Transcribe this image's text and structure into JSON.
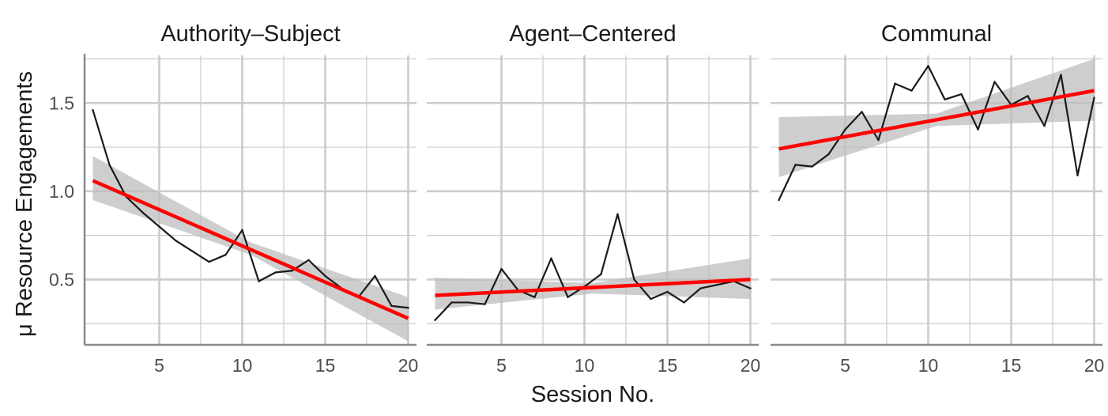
{
  "chart_data": {
    "type": "line",
    "xlabel": "Session No.",
    "ylabel": "μ Resource Engagements",
    "xlim": [
      0.5,
      20.5
    ],
    "ylim": [
      0.13,
      1.77
    ],
    "x_ticks": [
      5,
      10,
      15,
      20
    ],
    "x_tick_labels": [
      "5",
      "10",
      "15",
      "20"
    ],
    "y_ticks": [
      0.5,
      1.0,
      1.5
    ],
    "y_tick_labels": [
      "0.5",
      "1.0",
      "1.5"
    ],
    "grid": true,
    "facets": [
      {
        "title": "Authority–Subject",
        "x": [
          1,
          2,
          3,
          4,
          5,
          6,
          7,
          8,
          9,
          10,
          11,
          12,
          13,
          14,
          15,
          16,
          17,
          18,
          19,
          20
        ],
        "values": [
          1.46,
          1.15,
          0.97,
          0.88,
          0.8,
          0.72,
          0.66,
          0.6,
          0.64,
          0.78,
          0.49,
          0.54,
          0.55,
          0.61,
          0.52,
          0.45,
          0.4,
          0.52,
          0.35,
          0.34
        ],
        "trend": {
          "x0": 1,
          "y0": 1.06,
          "x1": 20,
          "y1": 0.28
        },
        "ci": [
          {
            "x": 1,
            "lo": 0.95,
            "hi": 1.2
          },
          {
            "x": 10.5,
            "lo": 0.64,
            "hi": 0.71
          },
          {
            "x": 20,
            "lo": 0.15,
            "hi": 0.4
          }
        ]
      },
      {
        "title": "Agent–Centered",
        "x": [
          1,
          2,
          3,
          4,
          5,
          6,
          7,
          8,
          9,
          10,
          11,
          12,
          13,
          14,
          15,
          16,
          17,
          18,
          19,
          20
        ],
        "values": [
          0.27,
          0.37,
          0.37,
          0.36,
          0.56,
          0.44,
          0.4,
          0.62,
          0.4,
          0.46,
          0.53,
          0.87,
          0.5,
          0.39,
          0.43,
          0.37,
          0.45,
          0.47,
          0.49,
          0.45
        ],
        "trend": {
          "x0": 1,
          "y0": 0.41,
          "x1": 20,
          "y1": 0.5
        },
        "ci": [
          {
            "x": 1,
            "lo": 0.33,
            "hi": 0.51
          },
          {
            "x": 10.5,
            "lo": 0.42,
            "hi": 0.48
          },
          {
            "x": 20,
            "lo": 0.39,
            "hi": 0.62
          }
        ]
      },
      {
        "title": "Communal",
        "x": [
          1,
          2,
          3,
          4,
          5,
          6,
          7,
          8,
          9,
          10,
          11,
          12,
          13,
          14,
          15,
          16,
          17,
          18,
          19,
          20
        ],
        "values": [
          0.95,
          1.15,
          1.14,
          1.21,
          1.35,
          1.45,
          1.29,
          1.61,
          1.57,
          1.71,
          1.52,
          1.55,
          1.35,
          1.62,
          1.49,
          1.54,
          1.37,
          1.66,
          1.09,
          1.53
        ],
        "trend": {
          "x0": 1,
          "y0": 1.24,
          "x1": 20,
          "y1": 1.57
        },
        "ci": [
          {
            "x": 1,
            "lo": 1.08,
            "hi": 1.42
          },
          {
            "x": 10.5,
            "lo": 1.37,
            "hi": 1.44
          },
          {
            "x": 20,
            "lo": 1.4,
            "hi": 1.75
          }
        ]
      }
    ],
    "colors": {
      "line": "#1a1a1a",
      "trend": "#ff0000",
      "ci": "#bdbdbd",
      "grid": "#cccccc",
      "axis": "#8a8a8a",
      "tick_text": "#4d4d4d"
    }
  }
}
